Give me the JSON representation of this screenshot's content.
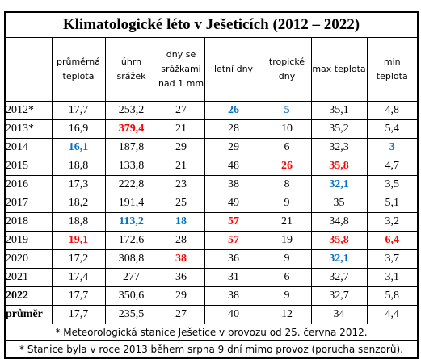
{
  "title": "Klimatologické léto v Ješeticích (2012 – 2022)",
  "headers": [
    "",
    "průměrná teplota",
    "úhrn srážek",
    "dny se srážkami nad 1 mm",
    "letní dny",
    "tropické dny",
    "max teplota",
    "min teplota"
  ],
  "colors": {
    "highlight_high": "#ff0000",
    "highlight_low": "#0070c0"
  },
  "rows": [
    {
      "year": "2012*",
      "year_bold": false,
      "cells": [
        {
          "v": "17,7"
        },
        {
          "v": "253,2"
        },
        {
          "v": "27"
        },
        {
          "v": "26",
          "c": "blue"
        },
        {
          "v": "5",
          "c": "blue"
        },
        {
          "v": "35,1"
        },
        {
          "v": "4,8"
        }
      ]
    },
    {
      "year": "2013*",
      "year_bold": false,
      "cells": [
        {
          "v": "16,9"
        },
        {
          "v": "379,4",
          "c": "red"
        },
        {
          "v": "21"
        },
        {
          "v": "28"
        },
        {
          "v": "10"
        },
        {
          "v": "35,2"
        },
        {
          "v": "5,4"
        }
      ]
    },
    {
      "year": "2014",
      "year_bold": false,
      "cells": [
        {
          "v": "16,1",
          "c": "blue"
        },
        {
          "v": "187,8"
        },
        {
          "v": "29"
        },
        {
          "v": "29"
        },
        {
          "v": "6"
        },
        {
          "v": "32,3"
        },
        {
          "v": "3",
          "c": "blue"
        }
      ]
    },
    {
      "year": "2015",
      "year_bold": false,
      "cells": [
        {
          "v": "18,8"
        },
        {
          "v": "133,8"
        },
        {
          "v": "21"
        },
        {
          "v": "48"
        },
        {
          "v": "26",
          "c": "red"
        },
        {
          "v": "35,8",
          "c": "red"
        },
        {
          "v": "4,7"
        }
      ]
    },
    {
      "year": "2016",
      "year_bold": false,
      "cells": [
        {
          "v": "17,3"
        },
        {
          "v": "222,8"
        },
        {
          "v": "23"
        },
        {
          "v": "38"
        },
        {
          "v": "8"
        },
        {
          "v": "32,1",
          "c": "blue"
        },
        {
          "v": "3,5"
        }
      ]
    },
    {
      "year": "2017",
      "year_bold": false,
      "cells": [
        {
          "v": "18,2"
        },
        {
          "v": "191,4"
        },
        {
          "v": "25"
        },
        {
          "v": "49"
        },
        {
          "v": "9"
        },
        {
          "v": "35"
        },
        {
          "v": "5,1"
        }
      ]
    },
    {
      "year": "2018",
      "year_bold": false,
      "cells": [
        {
          "v": "18,8"
        },
        {
          "v": "113,2",
          "c": "blue"
        },
        {
          "v": "18",
          "c": "blue"
        },
        {
          "v": "57",
          "c": "red"
        },
        {
          "v": "21"
        },
        {
          "v": "34,8"
        },
        {
          "v": "3,2"
        }
      ]
    },
    {
      "year": "2019",
      "year_bold": false,
      "cells": [
        {
          "v": "19,1",
          "c": "red"
        },
        {
          "v": "172,6"
        },
        {
          "v": "28"
        },
        {
          "v": "57",
          "c": "red"
        },
        {
          "v": "19"
        },
        {
          "v": "35,8",
          "c": "red"
        },
        {
          "v": "6,4",
          "c": "red"
        }
      ]
    },
    {
      "year": "2020",
      "year_bold": false,
      "cells": [
        {
          "v": "17,2"
        },
        {
          "v": "308,8"
        },
        {
          "v": "38",
          "c": "red"
        },
        {
          "v": "36"
        },
        {
          "v": "9"
        },
        {
          "v": "32,1",
          "c": "blue"
        },
        {
          "v": "3,7"
        }
      ]
    },
    {
      "year": "2021",
      "year_bold": false,
      "cells": [
        {
          "v": "17,4"
        },
        {
          "v": "277"
        },
        {
          "v": "36"
        },
        {
          "v": "31"
        },
        {
          "v": "6"
        },
        {
          "v": "32,7"
        },
        {
          "v": "3,1"
        }
      ]
    },
    {
      "year": "2022",
      "year_bold": true,
      "cells": [
        {
          "v": "17,7"
        },
        {
          "v": "350,6"
        },
        {
          "v": "29"
        },
        {
          "v": "38"
        },
        {
          "v": "9"
        },
        {
          "v": "32,7"
        },
        {
          "v": "5,8"
        }
      ]
    },
    {
      "year": "průměr",
      "year_bold": true,
      "cells": [
        {
          "v": "17,7"
        },
        {
          "v": "235,5"
        },
        {
          "v": "27"
        },
        {
          "v": "40"
        },
        {
          "v": "12"
        },
        {
          "v": "34"
        },
        {
          "v": "4,4"
        }
      ]
    }
  ],
  "notes": [
    "* Meteorologická stanice Ješetice v provozu od 25. června 2012.",
    "* Stanice byla v roce 2013 během srpna 9 dní mimo provoz (porucha senzorů)."
  ]
}
